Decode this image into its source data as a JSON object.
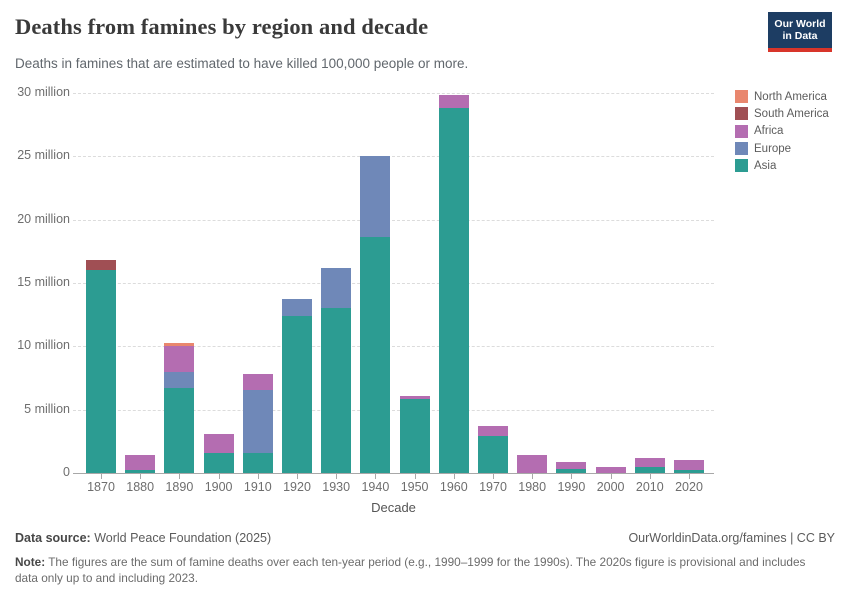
{
  "header": {
    "title": "Deaths from famines by region and decade",
    "subtitle": "Deaths in famines that are estimated to have killed 100,000 people or more.",
    "logo": {
      "line1": "Our World",
      "line2": "in Data",
      "bg_color": "#1d3d63",
      "accent_color": "#d8352a"
    }
  },
  "chart_data": {
    "type": "bar",
    "stacked": true,
    "title": "Deaths from famines by region and decade",
    "xlabel": "Decade",
    "ylabel": "",
    "unit": "million deaths",
    "ylim_millions": [
      0,
      30
    ],
    "grid": "horizontal-dashed",
    "legend_position": "right",
    "categories": [
      "1870",
      "1880",
      "1890",
      "1900",
      "1910",
      "1920",
      "1930",
      "1940",
      "1950",
      "1960",
      "1970",
      "1980",
      "1990",
      "2000",
      "2010",
      "2020"
    ],
    "y_ticks": [
      {
        "value": 0,
        "label": "0"
      },
      {
        "value": 5,
        "label": "5 million"
      },
      {
        "value": 10,
        "label": "10 million"
      },
      {
        "value": 15,
        "label": "15 million"
      },
      {
        "value": 20,
        "label": "20 million"
      },
      {
        "value": 25,
        "label": "25 million"
      },
      {
        "value": 30,
        "label": "30 million"
      }
    ],
    "series": [
      {
        "name": "Asia",
        "color": "#2C9C92",
        "values_millions": [
          16.0,
          0.25,
          6.7,
          1.55,
          1.6,
          12.4,
          13.0,
          18.6,
          5.85,
          28.85,
          2.95,
          0,
          0.3,
          0,
          0.45,
          0.25
        ]
      },
      {
        "name": "Europe",
        "color": "#6F88B8",
        "values_millions": [
          0,
          0,
          1.3,
          0,
          4.95,
          1.35,
          3.15,
          6.4,
          0,
          0,
          0,
          0,
          0,
          0,
          0,
          0
        ]
      },
      {
        "name": "Africa",
        "color": "#B46DB1",
        "values_millions": [
          0,
          1.15,
          2.0,
          1.5,
          1.3,
          0,
          0,
          0,
          0.2,
          1.0,
          0.75,
          1.45,
          0.6,
          0.5,
          0.75,
          0.8
        ]
      },
      {
        "name": "South America",
        "color": "#A04F54",
        "values_millions": [
          0.85,
          0,
          0,
          0,
          0,
          0,
          0,
          0,
          0,
          0,
          0,
          0,
          0,
          0,
          0,
          0
        ]
      },
      {
        "name": "North America",
        "color": "#E9876E",
        "values_millions": [
          0,
          0,
          0.25,
          0,
          0,
          0,
          0,
          0,
          0,
          0,
          0,
          0,
          0,
          0,
          0,
          0
        ]
      }
    ]
  },
  "footer": {
    "source_label": "Data source:",
    "source_text": " World Peace Foundation (2025)",
    "link_text": "OurWorldinData.org/famines | CC BY",
    "note_label": "Note:",
    "note_text": " The figures are the sum of famine deaths over each ten-year period (e.g., 1990–1999 for the 1990s). The 2020s figure is provisional and includes data only up to and including 2023."
  }
}
